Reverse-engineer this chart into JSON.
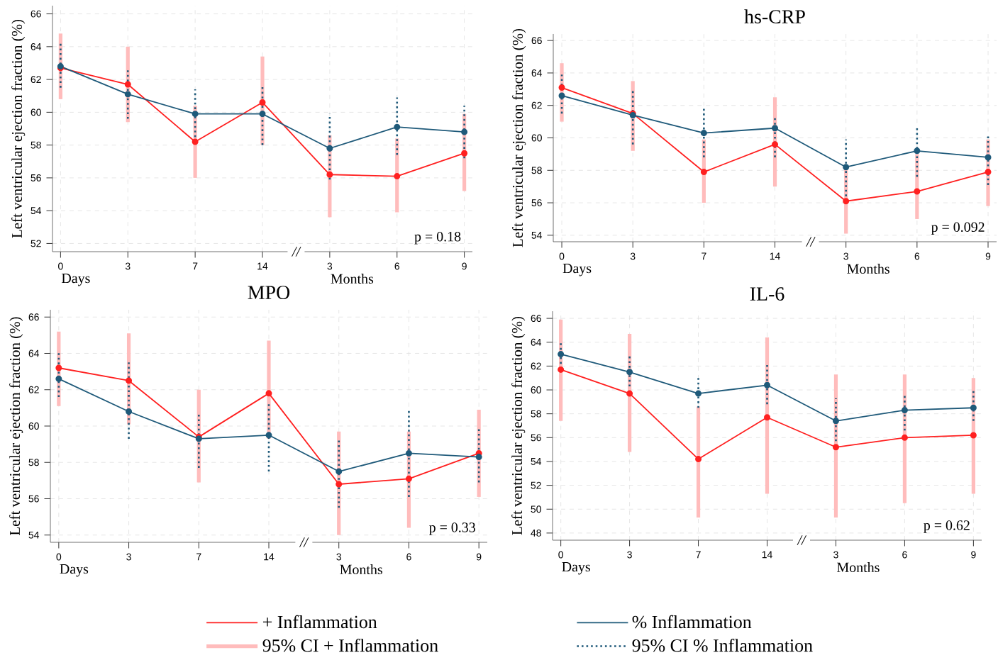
{
  "chart_data": [
    {
      "type": "line",
      "categories": [
        "0",
        "3",
        "7",
        "14",
        "3",
        "6",
        "9"
      ],
      "ylim": [
        51.5,
        66.5
      ],
      "yticks": [
        52,
        54,
        56,
        58,
        60,
        62,
        64,
        66
      ],
      "ylabel": "Left ventricular ejection fraction (%)",
      "grid": true,
      "marker": "circle",
      "line_style": "solid",
      "legend": "bottom",
      "annotations": [
        "p = 0.18",
        "Days",
        "Months",
        "//",
        "95% CI + Inflammation",
        "95% CI % Inflammation"
      ],
      "series": [
        {
          "name": "+ Inflammation",
          "color": "#ff2020",
          "values": [
            62.7,
            61.7,
            58.2,
            60.6,
            56.2,
            56.1,
            57.5
          ],
          "errors": [
            [
              60.8,
              64.8
            ],
            [
              59.4,
              64.0
            ],
            [
              56.0,
              60.4
            ],
            [
              58.0,
              63.4
            ],
            [
              53.6,
              58.6
            ],
            [
              53.9,
              58.4
            ],
            [
              55.2,
              59.9
            ]
          ]
        },
        {
          "name": "% Inflammation",
          "color": "#1f5a7a",
          "values": [
            62.8,
            61.1,
            59.9,
            59.9,
            57.8,
            59.1,
            58.8
          ],
          "errors": [
            [
              61.5,
              64.3
            ],
            [
              59.6,
              62.7
            ],
            [
              58.2,
              61.4
            ],
            [
              58.0,
              61.7
            ],
            [
              55.9,
              59.9
            ],
            [
              57.4,
              60.9
            ],
            [
              57.2,
              60.4
            ]
          ]
        }
      ]
    },
    {
      "type": "line",
      "title": "hs-CRP",
      "categories": [
        "0",
        "3",
        "7",
        "14",
        "3",
        "6",
        "9"
      ],
      "ylim": [
        53.6,
        66.4
      ],
      "yticks": [
        54,
        56,
        58,
        60,
        62,
        64,
        66
      ],
      "ylabel": "Left ventricular ejection fraction (%)",
      "grid": true,
      "marker": "circle",
      "line_style": "solid",
      "annotations": [
        "p = 0.092",
        "Days",
        "Months",
        "//"
      ],
      "series": [
        {
          "color": "#ff2020",
          "values": [
            63.1,
            61.5,
            57.9,
            59.6,
            56.1,
            56.7,
            57.9
          ],
          "errors": [
            [
              61.0,
              64.6
            ],
            [
              59.2,
              63.5
            ],
            [
              56.0,
              59.9
            ],
            [
              57.0,
              62.5
            ],
            [
              54.1,
              58.1
            ],
            [
              55.0,
              59.0
            ],
            [
              55.8,
              59.9
            ]
          ]
        },
        {
          "color": "#1f5a7a",
          "values": [
            62.6,
            61.4,
            60.3,
            60.6,
            58.2,
            59.2,
            58.8
          ],
          "errors": [
            [
              61.5,
              63.9
            ],
            [
              59.6,
              63.0
            ],
            [
              58.8,
              61.8
            ],
            [
              58.8,
              61.3
            ],
            [
              56.4,
              59.9
            ],
            [
              57.6,
              60.7
            ],
            [
              57.1,
              60.2
            ]
          ]
        }
      ]
    },
    {
      "type": "line",
      "title": "MPO",
      "categories": [
        "0",
        "3",
        "7",
        "14",
        "3",
        "6",
        "9"
      ],
      "ylim": [
        53.6,
        66.4
      ],
      "yticks": [
        54,
        56,
        58,
        60,
        62,
        64,
        66
      ],
      "ylabel": "Left ventricular ejection fraction (%)",
      "grid": true,
      "marker": "circle",
      "line_style": "solid",
      "annotations": [
        "p = 0.33",
        "Days",
        "Months",
        "//"
      ],
      "series": [
        {
          "color": "#ff2020",
          "values": [
            63.2,
            62.5,
            59.4,
            61.8,
            56.8,
            57.1,
            58.5
          ],
          "errors": [
            [
              61.1,
              65.2
            ],
            [
              60.1,
              65.1
            ],
            [
              56.9,
              62.0
            ],
            [
              59.3,
              64.7
            ],
            [
              54.0,
              59.7
            ],
            [
              54.4,
              59.7
            ],
            [
              56.1,
              60.9
            ]
          ]
        },
        {
          "color": "#1f5a7a",
          "values": [
            62.6,
            60.8,
            59.3,
            59.5,
            57.5,
            58.5,
            58.3
          ],
          "errors": [
            [
              61.6,
              64.1
            ],
            [
              59.3,
              63.5
            ],
            [
              57.7,
              60.7
            ],
            [
              57.5,
              61.2
            ],
            [
              55.5,
              59.2
            ],
            [
              56.1,
              60.9
            ],
            [
              56.9,
              59.9
            ]
          ]
        }
      ]
    },
    {
      "type": "line",
      "title": "IL-6",
      "categories": [
        "0",
        "3",
        "7",
        "14",
        "3",
        "6",
        "9"
      ],
      "ylim": [
        47.4,
        66.6
      ],
      "yticks": [
        48,
        50,
        52,
        54,
        56,
        58,
        60,
        62,
        64,
        66
      ],
      "ylabel": "Left ventricular ejection fraction (%)",
      "grid": true,
      "marker": "circle",
      "line_style": "solid",
      "annotations": [
        "p = 0.62",
        "Days",
        "Months",
        "//"
      ],
      "series": [
        {
          "color": "#ff2020",
          "values": [
            61.7,
            59.7,
            54.2,
            57.7,
            55.2,
            56.0,
            56.2
          ],
          "errors": [
            [
              57.4,
              65.9
            ],
            [
              54.8,
              64.7
            ],
            [
              49.3,
              58.6
            ],
            [
              51.3,
              64.4
            ],
            [
              49.3,
              61.3
            ],
            [
              50.5,
              61.3
            ],
            [
              51.3,
              61.0
            ]
          ]
        },
        {
          "color": "#1f5a7a",
          "values": [
            63.0,
            61.5,
            59.7,
            60.4,
            57.4,
            58.3,
            58.5
          ],
          "errors": [
            [
              61.8,
              64.0
            ],
            [
              60.3,
              63.0
            ],
            [
              58.5,
              61.0
            ],
            [
              58.8,
              62.1
            ],
            [
              55.7,
              59.3
            ],
            [
              56.6,
              59.7
            ],
            [
              57.4,
              59.9
            ]
          ]
        }
      ]
    }
  ]
}
